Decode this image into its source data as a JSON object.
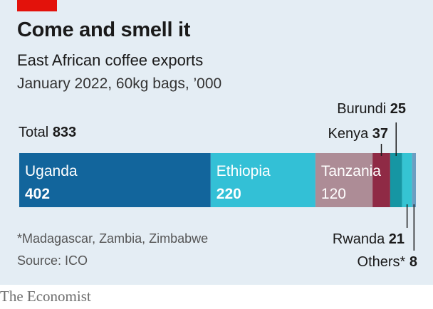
{
  "header": {
    "title": "Come and smell it",
    "subtitle": "East African coffee exports",
    "subsubtitle": "January 2022, 60kg bags, ’000"
  },
  "total": {
    "label": "Total",
    "value": "833"
  },
  "notes": {
    "footnote": "*Madagascar, Zambia, Zimbabwe",
    "source": "Source: ICO"
  },
  "brand": "The Economist",
  "colors": {
    "background": "#e4edf4",
    "accent_red": "#e3120b",
    "Uganda": "#12659c",
    "Ethiopia": "#33c0d6",
    "Tanzania": "#ad8c96",
    "Kenya": "#8f2a45",
    "Burundi": "#1696a3",
    "Rwanda": "#35c4d3",
    "Others": "#6c9ec2"
  },
  "chart_data": {
    "type": "bar",
    "orientation": "horizontal-stacked",
    "total": 833,
    "categories": [
      "Uganda",
      "Ethiopia",
      "Tanzania",
      "Kenya",
      "Burundi",
      "Rwanda",
      "Others*"
    ],
    "values": [
      402,
      220,
      120,
      37,
      25,
      21,
      8
    ],
    "xlim": [
      0,
      833
    ],
    "grid": false,
    "legend": "none"
  }
}
